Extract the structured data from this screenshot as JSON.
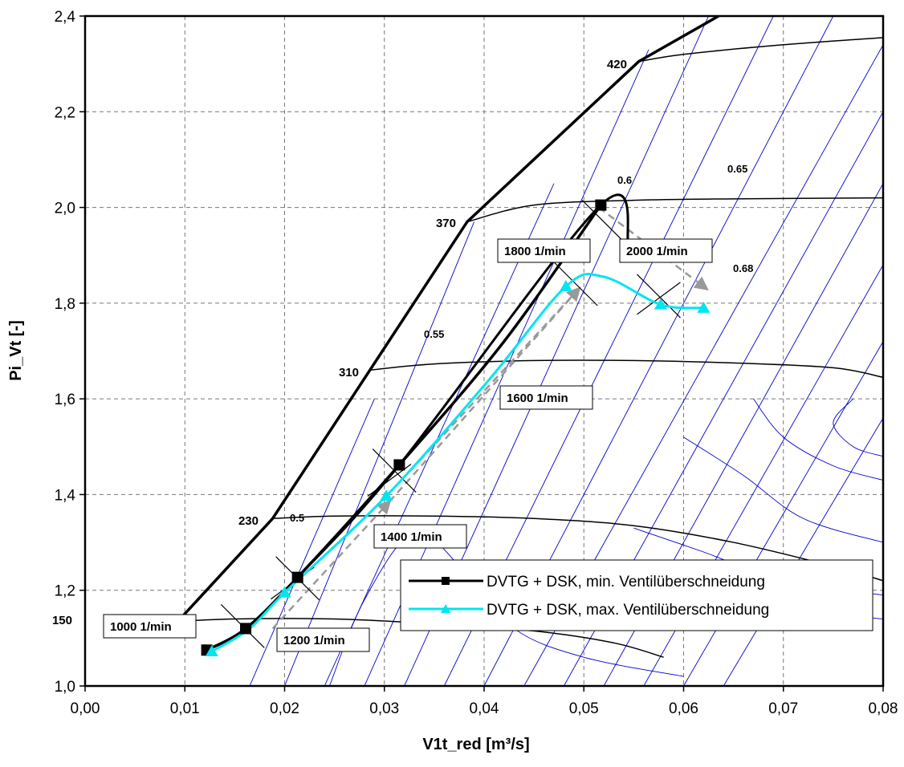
{
  "chart_data": {
    "type": "line",
    "xlabel": "V1t_red [m³/s]",
    "ylabel": "Pi_Vt [-]",
    "xlim": [
      0.0,
      0.08
    ],
    "ylim": [
      1.0,
      2.4
    ],
    "x_ticks": [
      "0,00",
      "0,01",
      "0,02",
      "0,03",
      "0,04",
      "0,05",
      "0,06",
      "0,07",
      "0,08"
    ],
    "y_ticks": [
      "1,0",
      "1,2",
      "1,4",
      "1,6",
      "1,8",
      "2,0",
      "2,2",
      "2,4"
    ],
    "grid": true,
    "legend": "bottom-right",
    "colors": {
      "series1": "#000000",
      "series2": "#00ffff",
      "efficiency": "#0000cc",
      "shift": "#999999"
    },
    "series": [
      {
        "name": "DVTG + DSK, min. Ventilüberschneidung",
        "marker": "square",
        "points": [
          [
            0.0122,
            1.075
          ],
          [
            0.0161,
            1.12
          ],
          [
            0.0213,
            1.227
          ],
          [
            0.0315,
            1.462
          ],
          [
            0.0517,
            2.005
          ],
          [
            0.0545,
            1.918
          ]
        ]
      },
      {
        "name": "DVTG + DSK, max. Ventilüberschneidung",
        "marker": "triangle",
        "points": [
          [
            0.0127,
            1.072
          ],
          [
            0.02,
            1.195
          ],
          [
            0.0302,
            1.397
          ],
          [
            0.0482,
            1.835
          ],
          [
            0.0577,
            1.797
          ],
          [
            0.062,
            1.79
          ]
        ]
      }
    ],
    "operating_points": [
      {
        "label": "1000 1/min",
        "x": 0.0122,
        "y": 1.075
      },
      {
        "label": "1200 1/min",
        "x": 0.0161,
        "y": 1.12
      },
      {
        "label": "1400 1/min",
        "x": 0.0315,
        "y": 1.462
      },
      {
        "label": "1600 1/min",
        "x": 0.0517,
        "y": 2.005
      },
      {
        "label": "1800 1/min",
        "x": 0.0517,
        "y": 2.005
      },
      {
        "label": "2000 1/min",
        "x": 0.0545,
        "y": 1.918
      }
    ],
    "speed_lines": [
      {
        "label": "150",
        "points": [
          [
            0.0093,
            1.135
          ],
          [
            0.015,
            1.14
          ],
          [
            0.025,
            1.14
          ],
          [
            0.035,
            1.13
          ],
          [
            0.045,
            1.115
          ],
          [
            0.053,
            1.09
          ],
          [
            0.058,
            1.06
          ]
        ]
      },
      {
        "label": "230",
        "points": [
          [
            0.0188,
            1.35
          ],
          [
            0.025,
            1.355
          ],
          [
            0.035,
            1.355
          ],
          [
            0.045,
            1.35
          ],
          [
            0.055,
            1.335
          ],
          [
            0.065,
            1.3
          ],
          [
            0.075,
            1.25
          ],
          [
            0.08,
            1.22
          ]
        ]
      },
      {
        "label": "310",
        "points": [
          [
            0.0285,
            1.66
          ],
          [
            0.035,
            1.673
          ],
          [
            0.045,
            1.68
          ],
          [
            0.055,
            1.68
          ],
          [
            0.065,
            1.675
          ],
          [
            0.075,
            1.665
          ],
          [
            0.08,
            1.645
          ]
        ]
      },
      {
        "label": "370",
        "points": [
          [
            0.0383,
            1.97
          ],
          [
            0.045,
            2.005
          ],
          [
            0.055,
            2.015
          ],
          [
            0.065,
            2.018
          ],
          [
            0.08,
            2.02
          ]
        ]
      },
      {
        "label": "420",
        "points": [
          [
            0.0555,
            2.305
          ],
          [
            0.06,
            2.32
          ],
          [
            0.07,
            2.34
          ],
          [
            0.08,
            2.355
          ]
        ]
      }
    ],
    "surge_line": [
      [
        0.0093,
        1.135
      ],
      [
        0.0188,
        1.35
      ],
      [
        0.0383,
        1.97
      ],
      [
        0.0555,
        2.305
      ],
      [
        0.0635,
        2.4
      ]
    ],
    "choke_line": [
      [
        0.0122,
        1.075
      ],
      [
        0.0161,
        1.12
      ],
      [
        0.0213,
        1.227
      ],
      [
        0.0315,
        1.462
      ],
      [
        0.042,
        1.72
      ],
      [
        0.0517,
        2.005
      ]
    ],
    "efficiency_labels": [
      {
        "label": "0.5",
        "x": 0.0197,
        "y": 1.355
      },
      {
        "label": "0.55",
        "x": 0.0315,
        "y": 1.71
      },
      {
        "label": "0.6",
        "x": 0.0555,
        "y": 2.055
      },
      {
        "label": "0.65",
        "x": 0.0665,
        "y": 2.085
      },
      {
        "label": "0.68",
        "x": 0.064,
        "y": 1.9
      }
    ]
  }
}
